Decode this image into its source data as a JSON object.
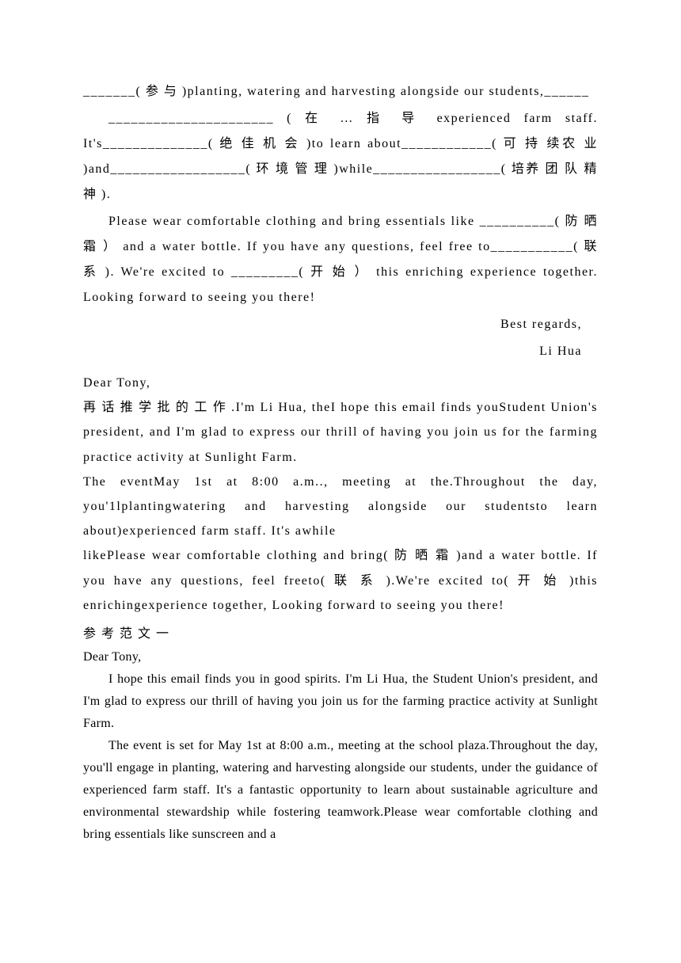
{
  "section1": {
    "p1": "_______( 参 与 )planting, watering and harvesting alongside our students,______",
    "p2": "______________________ ( 在 … 指 导 experienced farm staff. It's______________( 绝 佳 机 会 )to learn about____________( 可 持 续农 业 )and__________________( 环 境 管 理 )while_________________( 培养 团 队 精 神 ).",
    "p3": "Please wear comfortable clothing and bring essentials like __________( 防 晒 霜 ）  and a water bottle. If you have any questions, feel free to___________( 联 系 ). We're excited to _________( 开 始 ） this enriching experience together. Looking forward to seeing you there!",
    "closing1": "Best regards,",
    "closing2": "Li Hua"
  },
  "section2": {
    "greeting": "Dear Tony,",
    "p1": "再 话 推 学 批 的 工 作 .I'm Li Hua, theI hope this email finds youStudent Union's president, and I'm glad to express our thrill of having you join us for the farming practice activity at Sunlight Farm.",
    "p2": "The eventMay 1st at 8:00 a.m.., meeting at the.Throughout the day, you'1lplantingwatering and harvesting alongside our studentsto learn about)experienced farm staff. It's awhile",
    "p3": "likePlease wear comfortable clothing and bring( 防 晒 霜 )and a water bottle. If you have any questions, feel freeto( 联 系 ).We're excited to( 开 始 )this enrichingexperience together, Looking forward to seeing you there!"
  },
  "refTitle": "参 考 范 文 一",
  "section3": {
    "greeting": "Dear Tony,",
    "p1": "I hope this email finds you in good spirits. I'm Li Hua, the Student Union's president, and I'm glad to express our thrill of having you join us for the farming practice activity at Sunlight Farm.",
    "p2": "The event is set for May 1st at 8:00 a.m., meeting at the school plaza.Throughout the day, you'll engage in planting, watering and harvesting alongside our students, under the guidance of experienced farm staff. It's a fantastic opportunity to learn about sustainable agriculture and environmental stewardship while fostering teamwork.Please wear comfortable clothing and bring essentials like sunscreen and a"
  }
}
